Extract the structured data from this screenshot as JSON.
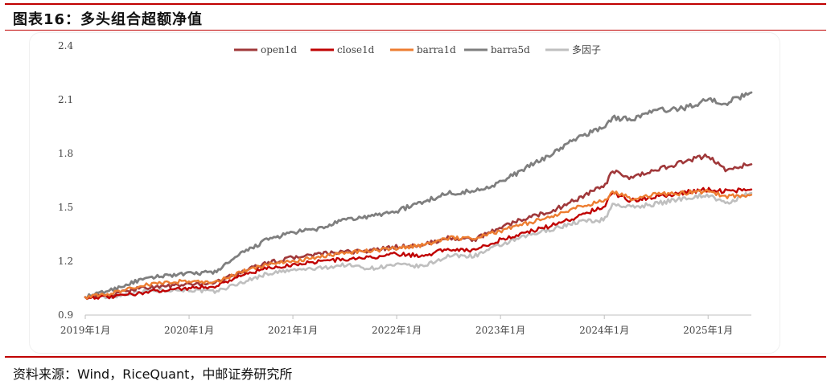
{
  "header": {
    "title": "图表16：多头组合超额净值"
  },
  "footer": {
    "source": "资料来源：Wind，RiceQuant，中邮证券研究所"
  },
  "colors": {
    "rule": "#c00000",
    "open1d": "#a0383a",
    "close1d": "#c00000",
    "barra1d": "#ed7d31",
    "barra5d": "#7f7f7f",
    "multi": "#bfbfbf"
  },
  "chart_data": {
    "type": "line",
    "title": "",
    "xlabel": "",
    "ylabel": "",
    "ylim": [
      0.9,
      2.4
    ],
    "yticks": [
      0.9,
      1.2,
      1.5,
      1.8,
      2.1,
      2.4
    ],
    "ytick_labels": [
      "0.9",
      "1.2",
      "1.5",
      "1.8",
      "2.1",
      "2.4"
    ],
    "xlim": [
      "2019-01",
      "2025-06"
    ],
    "xticks": [
      "2019-01",
      "2020-01",
      "2021-01",
      "2022-01",
      "2023-01",
      "2024-01",
      "2025-01"
    ],
    "xtick_labels": [
      "2019年1月",
      "2020年1月",
      "2021年1月",
      "2022年1月",
      "2023年1月",
      "2024年1月",
      "2025年1月"
    ],
    "grid": false,
    "legend_position": "top",
    "x": [
      "2019-01",
      "2019-04",
      "2019-07",
      "2019-10",
      "2020-01",
      "2020-04",
      "2020-07",
      "2020-10",
      "2021-01",
      "2021-04",
      "2021-07",
      "2021-10",
      "2022-01",
      "2022-04",
      "2022-07",
      "2022-10",
      "2023-01",
      "2023-04",
      "2023-07",
      "2023-10",
      "2024-01",
      "2024-02",
      "2024-04",
      "2024-07",
      "2024-10",
      "2025-01",
      "2025-03",
      "2025-06"
    ],
    "series": [
      {
        "name": "open1d",
        "color_key": "open1d",
        "values": [
          1.0,
          1.01,
          1.05,
          1.06,
          1.07,
          1.08,
          1.14,
          1.19,
          1.22,
          1.24,
          1.25,
          1.26,
          1.28,
          1.29,
          1.33,
          1.32,
          1.39,
          1.44,
          1.48,
          1.55,
          1.62,
          1.7,
          1.66,
          1.71,
          1.75,
          1.79,
          1.71,
          1.74
        ]
      },
      {
        "name": "close1d",
        "color_key": "close1d",
        "values": [
          1.0,
          1.0,
          1.02,
          1.04,
          1.05,
          1.06,
          1.12,
          1.16,
          1.18,
          1.2,
          1.21,
          1.22,
          1.24,
          1.23,
          1.27,
          1.26,
          1.32,
          1.36,
          1.4,
          1.45,
          1.51,
          1.58,
          1.54,
          1.56,
          1.58,
          1.6,
          1.59,
          1.6
        ]
      },
      {
        "name": "barra1d",
        "color_key": "barra1d",
        "values": [
          1.0,
          1.02,
          1.06,
          1.08,
          1.09,
          1.08,
          1.14,
          1.18,
          1.2,
          1.22,
          1.25,
          1.26,
          1.27,
          1.29,
          1.33,
          1.33,
          1.37,
          1.41,
          1.45,
          1.5,
          1.54,
          1.59,
          1.55,
          1.57,
          1.58,
          1.59,
          1.56,
          1.57
        ]
      },
      {
        "name": "barra5d",
        "color_key": "barra5d",
        "values": [
          1.0,
          1.04,
          1.09,
          1.12,
          1.13,
          1.14,
          1.24,
          1.32,
          1.36,
          1.38,
          1.43,
          1.45,
          1.48,
          1.53,
          1.58,
          1.59,
          1.64,
          1.72,
          1.8,
          1.89,
          1.95,
          2.0,
          1.99,
          2.04,
          2.05,
          2.1,
          2.08,
          2.14
        ]
      },
      {
        "name": "多因子",
        "color_key": "multi",
        "values": [
          1.0,
          1.0,
          1.03,
          1.04,
          1.04,
          1.03,
          1.08,
          1.13,
          1.15,
          1.16,
          1.18,
          1.16,
          1.18,
          1.17,
          1.23,
          1.23,
          1.29,
          1.34,
          1.38,
          1.42,
          1.43,
          1.52,
          1.5,
          1.52,
          1.55,
          1.57,
          1.52,
          1.58
        ]
      }
    ]
  }
}
